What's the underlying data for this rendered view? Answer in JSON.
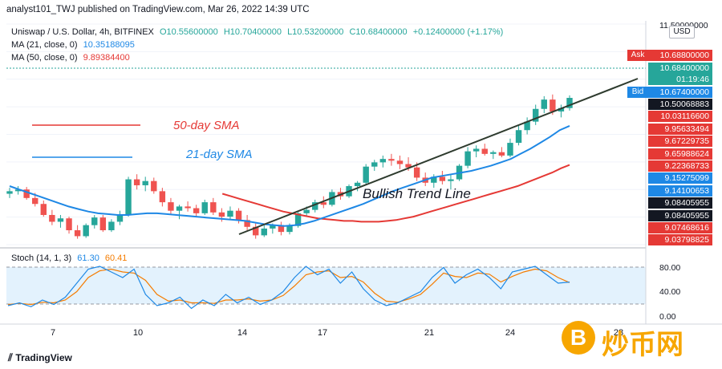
{
  "header": {
    "publisher": "analyst101_TWJ published on TradingView.com, Mar 26, 2022 14:39 UTC"
  },
  "legend": {
    "symbol": "Uniswap / U.S. Dollar, 4h, BITFINEX",
    "o": "O10.55600000",
    "h": "H10.70400000",
    "l": "L10.53200000",
    "c": "C10.68400000",
    "chg": "+0.12400000 (+1.17%)",
    "ma21_label": "MA (21, close, 0)",
    "ma21_value": "10.35188095",
    "ma50_label": "MA (50, close, 0)",
    "ma50_value": "9.89384400",
    "stoch_label": "Stoch (14, 1, 3)",
    "stoch_k": "61.30",
    "stoch_d": "60.41"
  },
  "price_axis": {
    "currency": "USD",
    "top": "11.50000000",
    "ask_tag": "Ask",
    "ask": "10.68800000",
    "last": "10.68400000",
    "countdown": "01:19:46",
    "bid_tag": "Bid",
    "bid": "10.67400000",
    "labels": [
      {
        "text": "10.50068883",
        "color": "#131722"
      },
      {
        "text": "10.03116600",
        "color": "#e53935"
      },
      {
        "text": "9.95633494",
        "color": "#e53935"
      },
      {
        "text": "9.67229735",
        "color": "#e53935"
      },
      {
        "text": "9.65988624",
        "color": "#e53935"
      },
      {
        "text": "9.22368733",
        "color": "#e53935"
      },
      {
        "text": "9.15275099",
        "color": "#1e88e5"
      },
      {
        "text": "9.14100653",
        "color": "#1e88e5"
      },
      {
        "text": "9.08405955",
        "color": "#131722"
      },
      {
        "text": "9.08405955",
        "color": "#131722"
      },
      {
        "text": "9.07468616",
        "color": "#e53935"
      },
      {
        "text": "9.03798825",
        "color": "#e53935"
      }
    ]
  },
  "stoch_axis": [
    "80.00",
    "40.00",
    "0.00"
  ],
  "annotations": {
    "sma50": "50-day SMA",
    "sma21": "21-day SMA",
    "trend": "Bullish Trend Line"
  },
  "footer": {
    "brand": "TradingView"
  },
  "watermark": {
    "coin": "B",
    "text": "炒币网"
  },
  "colors": {
    "up": "#26a69a",
    "down": "#ef5350",
    "ma21": "#1e88e5",
    "ma50": "#e53935",
    "stoch_k": "#1e88e5",
    "stoch_d": "#f57c00"
  },
  "chart_data": {
    "type": "candlestick",
    "x_ticks": [
      "7",
      "10",
      "14",
      "17",
      "21",
      "24",
      "28"
    ],
    "ylim": [
      8.95,
      11.55
    ],
    "candles": [
      [
        9.55,
        9.62,
        9.5,
        9.58
      ],
      [
        9.58,
        9.64,
        9.54,
        9.6
      ],
      [
        9.6,
        9.63,
        9.48,
        9.5
      ],
      [
        9.5,
        9.56,
        9.4,
        9.43
      ],
      [
        9.43,
        9.47,
        9.28,
        9.3
      ],
      [
        9.3,
        9.36,
        9.18,
        9.22
      ],
      [
        9.22,
        9.3,
        9.15,
        9.26
      ],
      [
        9.26,
        9.28,
        9.08,
        9.12
      ],
      [
        9.12,
        9.18,
        9.02,
        9.05
      ],
      [
        9.05,
        9.2,
        9.03,
        9.18
      ],
      [
        9.18,
        9.3,
        9.14,
        9.27
      ],
      [
        9.27,
        9.3,
        9.1,
        9.12
      ],
      [
        9.12,
        9.25,
        9.1,
        9.22
      ],
      [
        9.22,
        9.35,
        9.18,
        9.3
      ],
      [
        9.3,
        9.75,
        9.28,
        9.72
      ],
      [
        9.72,
        9.78,
        9.6,
        9.65
      ],
      [
        9.65,
        9.75,
        9.58,
        9.7
      ],
      [
        9.7,
        9.74,
        9.55,
        9.58
      ],
      [
        9.58,
        9.62,
        9.4,
        9.45
      ],
      [
        9.45,
        9.5,
        9.3,
        9.35
      ],
      [
        9.35,
        9.42,
        9.25,
        9.4
      ],
      [
        9.4,
        9.46,
        9.34,
        9.38
      ],
      [
        9.38,
        9.42,
        9.28,
        9.32
      ],
      [
        9.32,
        9.48,
        9.3,
        9.45
      ],
      [
        9.45,
        9.5,
        9.3,
        9.33
      ],
      [
        9.33,
        9.38,
        9.22,
        9.28
      ],
      [
        9.28,
        9.4,
        9.25,
        9.35
      ],
      [
        9.35,
        9.38,
        9.2,
        9.24
      ],
      [
        9.24,
        9.3,
        9.12,
        9.16
      ],
      [
        9.16,
        9.2,
        9.02,
        9.06
      ],
      [
        9.06,
        9.18,
        9.04,
        9.14
      ],
      [
        9.14,
        9.2,
        9.08,
        9.18
      ],
      [
        9.18,
        9.22,
        9.06,
        9.1
      ],
      [
        9.1,
        9.2,
        9.07,
        9.17
      ],
      [
        9.17,
        9.34,
        9.15,
        9.32
      ],
      [
        9.32,
        9.4,
        9.28,
        9.36
      ],
      [
        9.36,
        9.48,
        9.33,
        9.45
      ],
      [
        9.45,
        9.52,
        9.38,
        9.42
      ],
      [
        9.42,
        9.6,
        9.4,
        9.57
      ],
      [
        9.57,
        9.62,
        9.48,
        9.52
      ],
      [
        9.52,
        9.66,
        9.5,
        9.64
      ],
      [
        9.64,
        9.7,
        9.58,
        9.68
      ],
      [
        9.68,
        9.9,
        9.66,
        9.87
      ],
      [
        9.87,
        9.95,
        9.82,
        9.92
      ],
      [
        9.92,
        10.0,
        9.86,
        9.96
      ],
      [
        9.96,
        10.02,
        9.88,
        9.94
      ],
      [
        9.94,
        10.0,
        9.84,
        9.9
      ],
      [
        9.9,
        9.98,
        9.82,
        9.86
      ],
      [
        9.86,
        9.92,
        9.7,
        9.74
      ],
      [
        9.74,
        9.8,
        9.64,
        9.68
      ],
      [
        9.68,
        9.78,
        9.62,
        9.75
      ],
      [
        9.75,
        9.82,
        9.66,
        9.7
      ],
      [
        9.7,
        9.78,
        9.6,
        9.72
      ],
      [
        9.72,
        9.9,
        9.7,
        9.88
      ],
      [
        9.88,
        10.1,
        9.85,
        10.05
      ],
      [
        10.05,
        10.12,
        9.98,
        10.08
      ],
      [
        10.08,
        10.14,
        10.0,
        10.02
      ],
      [
        10.02,
        10.06,
        9.96,
        10.04
      ],
      [
        10.04,
        10.1,
        9.98,
        10.0
      ],
      [
        10.0,
        10.2,
        9.98,
        10.15
      ],
      [
        10.15,
        10.35,
        10.12,
        10.3
      ],
      [
        10.3,
        10.45,
        10.25,
        10.4
      ],
      [
        10.4,
        10.6,
        10.36,
        10.55
      ],
      [
        10.55,
        10.7,
        10.5,
        10.66
      ],
      [
        10.66,
        10.72,
        10.48,
        10.52
      ],
      [
        10.52,
        10.6,
        10.45,
        10.56
      ],
      [
        10.56,
        10.71,
        10.53,
        10.68
      ]
    ],
    "ma21": [
      9.64,
      9.6,
      9.56,
      9.52,
      9.48,
      9.44,
      9.4,
      9.37,
      9.34,
      9.32,
      9.31,
      9.3,
      9.3,
      9.31,
      9.32,
      9.32,
      9.31,
      9.3,
      9.29,
      9.28,
      9.27,
      9.26,
      9.25,
      9.24,
      9.23,
      9.21,
      9.19,
      9.18,
      9.17,
      9.18,
      9.2,
      9.23,
      9.27,
      9.31,
      9.35,
      9.39,
      9.43,
      9.48,
      9.53,
      9.58,
      9.62,
      9.66,
      9.7,
      9.74,
      9.76,
      9.78,
      9.8,
      9.82,
      9.85,
      9.88,
      9.92,
      9.96,
      10.02,
      10.08,
      10.15,
      10.22,
      10.3,
      10.35
    ],
    "ma50": [
      9.55,
      9.52,
      9.49,
      9.46,
      9.43,
      9.4,
      9.37,
      9.34,
      9.32,
      9.3,
      9.28,
      9.26,
      9.25,
      9.24,
      9.23,
      9.23,
      9.22,
      9.22,
      9.22,
      9.23,
      9.24,
      9.26,
      9.28,
      9.31,
      9.34,
      9.37,
      9.4,
      9.43,
      9.46,
      9.49,
      9.52,
      9.55,
      9.58,
      9.61,
      9.64,
      9.68,
      9.72,
      9.76,
      9.8,
      9.85,
      9.89
    ],
    "stoch_k": [
      20,
      25,
      18,
      30,
      22,
      35,
      60,
      85,
      90,
      80,
      70,
      85,
      40,
      20,
      25,
      35,
      15,
      30,
      20,
      40,
      25,
      35,
      22,
      30,
      45,
      70,
      90,
      75,
      85,
      60,
      80,
      50,
      30,
      20,
      25,
      35,
      45,
      70,
      88,
      60,
      75,
      85,
      70,
      50,
      80,
      85,
      90,
      75,
      60,
      62
    ],
    "stoch_d": [
      22,
      24,
      22,
      26,
      25,
      30,
      45,
      70,
      82,
      85,
      80,
      78,
      65,
      40,
      28,
      30,
      25,
      25,
      24,
      30,
      30,
      32,
      28,
      30,
      38,
      55,
      75,
      80,
      82,
      70,
      72,
      62,
      42,
      28,
      26,
      32,
      40,
      58,
      78,
      72,
      70,
      78,
      76,
      62,
      72,
      80,
      85,
      82,
      70,
      61
    ]
  }
}
